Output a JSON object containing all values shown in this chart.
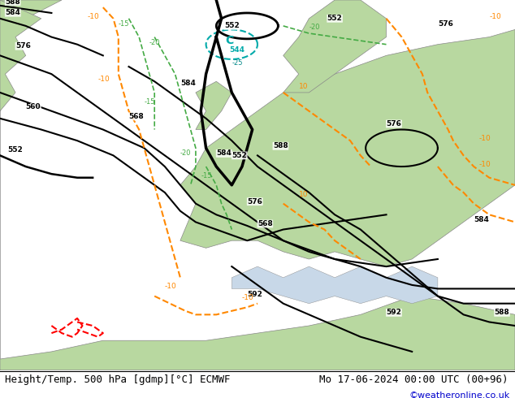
{
  "title_left": "Height/Temp. 500 hPa [gdmp][°C] ECMWF",
  "title_right": "Mo 17-06-2024 00:00 UTC (00+96)",
  "credit": "©weatheronline.co.uk",
  "bg_color": "#d0e8f0",
  "land_color": "#c8e6b0",
  "sea_color": "#ddeeff",
  "gray_color": "#c0c0c0",
  "bottom_bar_color": "#ffffff",
  "title_fontsize": 9,
  "credit_fontsize": 8,
  "credit_color": "#0000cc"
}
